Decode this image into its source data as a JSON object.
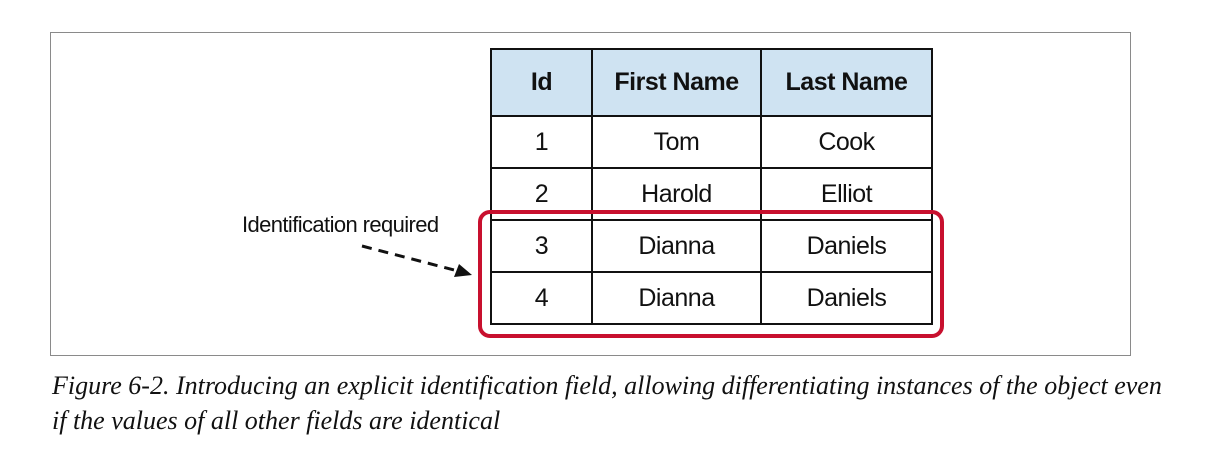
{
  "table": {
    "headers": {
      "id": "Id",
      "first_name": "First Name",
      "last_name": "Last Name"
    },
    "rows": [
      {
        "id": "1",
        "first_name": "Tom",
        "last_name": "Cook"
      },
      {
        "id": "2",
        "first_name": "Harold",
        "last_name": "Elliot"
      },
      {
        "id": "3",
        "first_name": "Dianna",
        "last_name": "Daniels"
      },
      {
        "id": "4",
        "first_name": "Dianna",
        "last_name": "Daniels"
      }
    ]
  },
  "annotation": {
    "label": "Identification required"
  },
  "colors": {
    "header_background": "#cfe3f2",
    "highlight": "#c8102e"
  },
  "caption": {
    "text": "Figure 6-2. Introducing an explicit identification field, allowing differentiating instances of the object even if the values of all other fields are identical"
  }
}
